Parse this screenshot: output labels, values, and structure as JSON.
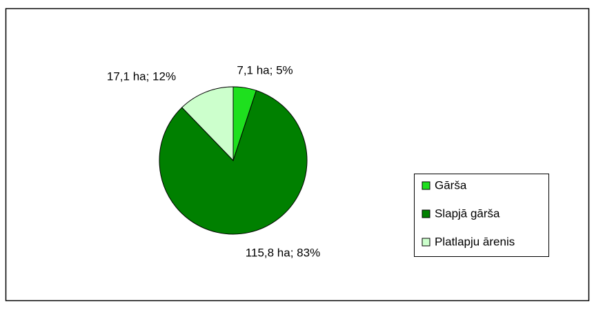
{
  "chart_data": {
    "type": "pie",
    "categories": [
      "Gārša",
      "Slapjā gārša",
      "Platlapju ārenis"
    ],
    "values": [
      7.1,
      115.8,
      17.1
    ],
    "value_labels": [
      "7,1 ha; 5%",
      "115,8 ha; 83%",
      "17,1 ha; 12%"
    ],
    "colors": [
      "#1ee01e",
      "#008000",
      "#ccffcc"
    ],
    "legend": "right"
  }
}
